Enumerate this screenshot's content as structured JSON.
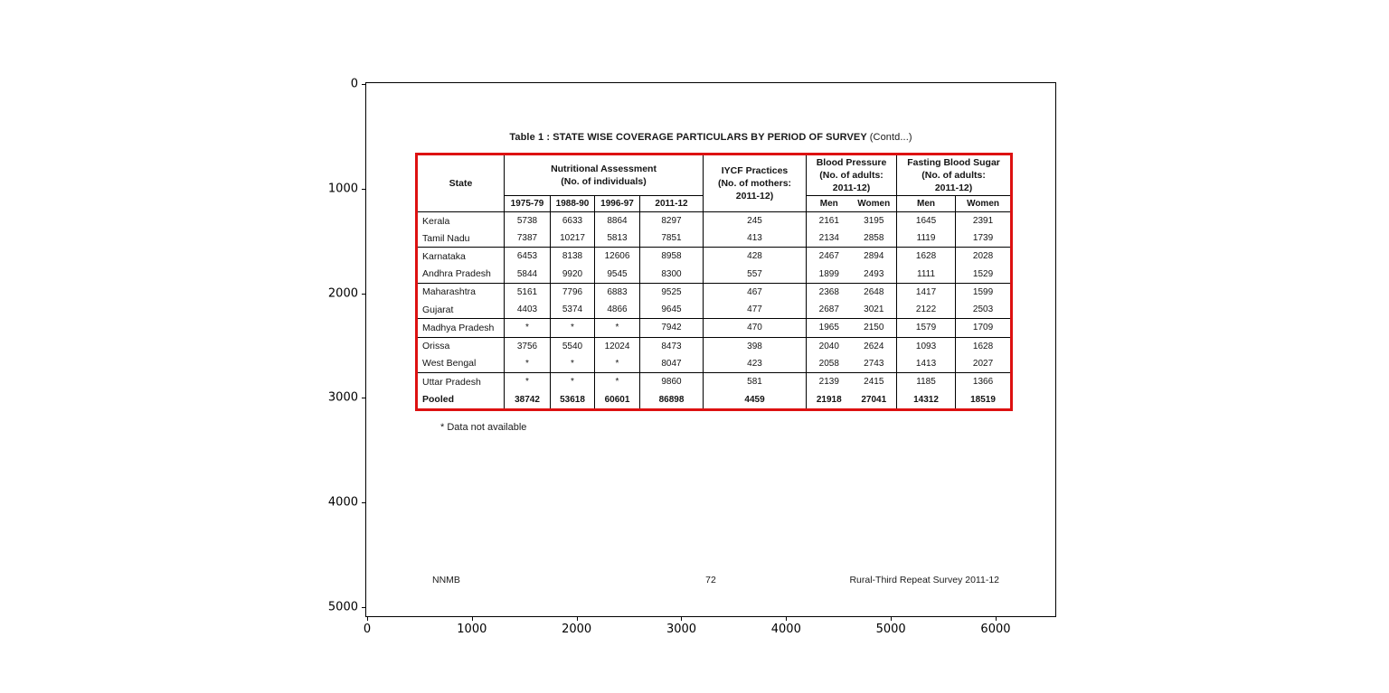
{
  "figure": {
    "x_ticks": [
      "0",
      "1000",
      "2000",
      "3000",
      "4000",
      "5000",
      "6000"
    ],
    "y_ticks": [
      "0",
      "1000",
      "2000",
      "3000",
      "4000",
      "5000"
    ]
  },
  "page": {
    "title_main": "Table 1 : STATE WISE COVERAGE PARTICULARS BY PERIOD OF SURVEY ",
    "title_suffix": "(Contd...)",
    "footnote": "* Data not available",
    "footer_left": "NNMB",
    "footer_center": "72",
    "footer_right": "Rural-Third Repeat Survey 2011-12"
  },
  "table": {
    "header": {
      "state": "State",
      "nutritional": "Nutritional Assessment\n(No. of individuals)",
      "iycf": "IYCF Practices\n(No. of mothers:\n2011-12)",
      "blood_pressure": "Blood Pressure\n(No. of adults:\n2011-12)",
      "fasting_blood_sugar": "Fasting Blood Sugar\n(No. of adults:\n2011-12)",
      "years": [
        "1975-79",
        "1988-90",
        "1996-97",
        "2011-12"
      ],
      "men": "Men",
      "women": "Women"
    },
    "rows": [
      {
        "state": "Kerala",
        "na": [
          "5738",
          "6633",
          "8864",
          "8297"
        ],
        "iycf": "245",
        "bp": [
          "2161",
          "3195"
        ],
        "fbs": [
          "1645",
          "2391"
        ],
        "group_end": false,
        "bold": false
      },
      {
        "state": "Tamil Nadu",
        "na": [
          "7387",
          "10217",
          "5813",
          "7851"
        ],
        "iycf": "413",
        "bp": [
          "2134",
          "2858"
        ],
        "fbs": [
          "1119",
          "1739"
        ],
        "group_end": true,
        "bold": false
      },
      {
        "state": "Karnataka",
        "na": [
          "6453",
          "8138",
          "12606",
          "8958"
        ],
        "iycf": "428",
        "bp": [
          "2467",
          "2894"
        ],
        "fbs": [
          "1628",
          "2028"
        ],
        "group_end": false,
        "bold": false
      },
      {
        "state": "Andhra Pradesh",
        "na": [
          "5844",
          "9920",
          "9545",
          "8300"
        ],
        "iycf": "557",
        "bp": [
          "1899",
          "2493"
        ],
        "fbs": [
          "1111",
          "1529"
        ],
        "group_end": true,
        "bold": false
      },
      {
        "state": "Maharashtra",
        "na": [
          "5161",
          "7796",
          "6883",
          "9525"
        ],
        "iycf": "467",
        "bp": [
          "2368",
          "2648"
        ],
        "fbs": [
          "1417",
          "1599"
        ],
        "group_end": false,
        "bold": false
      },
      {
        "state": "Gujarat",
        "na": [
          "4403",
          "5374",
          "4866",
          "9645"
        ],
        "iycf": "477",
        "bp": [
          "2687",
          "3021"
        ],
        "fbs": [
          "2122",
          "2503"
        ],
        "group_end": true,
        "bold": false
      },
      {
        "state": "Madhya Pradesh",
        "na": [
          "*",
          "*",
          "*",
          "7942"
        ],
        "iycf": "470",
        "bp": [
          "1965",
          "2150"
        ],
        "fbs": [
          "1579",
          "1709"
        ],
        "group_end": true,
        "bold": false
      },
      {
        "state": "Orissa",
        "na": [
          "3756",
          "5540",
          "12024",
          "8473"
        ],
        "iycf": "398",
        "bp": [
          "2040",
          "2624"
        ],
        "fbs": [
          "1093",
          "1628"
        ],
        "group_end": false,
        "bold": false
      },
      {
        "state": "West Bengal",
        "na": [
          "*",
          "*",
          "*",
          "8047"
        ],
        "iycf": "423",
        "bp": [
          "2058",
          "2743"
        ],
        "fbs": [
          "1413",
          "2027"
        ],
        "group_end": true,
        "bold": false
      },
      {
        "state": "Uttar Pradesh",
        "na": [
          "*",
          "*",
          "*",
          "9860"
        ],
        "iycf": "581",
        "bp": [
          "2139",
          "2415"
        ],
        "fbs": [
          "1185",
          "1366"
        ],
        "group_end": false,
        "bold": false
      },
      {
        "state": "Pooled",
        "na": [
          "38742",
          "53618",
          "60601",
          "86898"
        ],
        "iycf": "4459",
        "bp": [
          "21918",
          "27041"
        ],
        "fbs": [
          "14312",
          "18519"
        ],
        "group_end": true,
        "bold": true
      }
    ]
  },
  "colors": {
    "table_border": "#dd1111",
    "axes_border": "#000000",
    "text": "#1a1a1a",
    "background": "#ffffff"
  }
}
